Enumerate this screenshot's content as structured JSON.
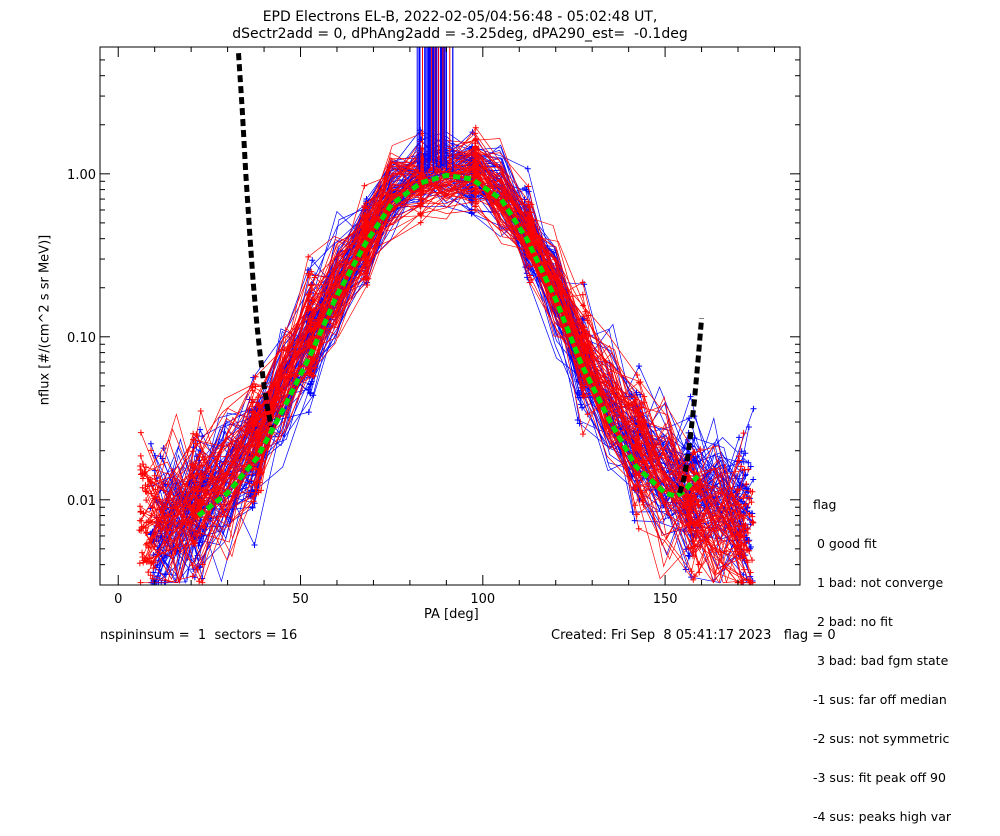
{
  "chart_data": {
    "type": "line",
    "title": "EPD Electrons EL-B, 2022-02-05/04:56:48 - 05:02:48 UT,",
    "subtitle": "dSectr2add = 0, dPhAng2add = -3.25deg, dPA290_est=  -0.1deg",
    "xlabel": "PA [deg]",
    "ylabel": "nflux [#/(cm^2 s sr MeV)]",
    "xlim": [
      -5,
      187
    ],
    "ylim": [
      0.003,
      6.0
    ],
    "yscale": "log",
    "xticks": [
      "0",
      "50",
      "100",
      "150"
    ],
    "xtick_values": [
      0,
      50,
      100,
      150
    ],
    "yticks": [
      "0.01",
      "0.10",
      "1.00"
    ],
    "ytick_values": [
      0.01,
      0.1,
      1.0
    ],
    "grid": false,
    "series": [
      {
        "color": "#0000ff",
        "style": "median-curve",
        "pa": [
          11,
          17,
          22,
          29,
          37,
          45,
          53,
          60,
          68,
          75,
          83,
          90,
          97,
          105,
          112,
          120,
          127,
          135,
          142,
          150,
          157,
          165,
          172
        ],
        "values": [
          0.006,
          0.008,
          0.009,
          0.013,
          0.022,
          0.045,
          0.1,
          0.22,
          0.45,
          0.8,
          1.02,
          1.05,
          1.0,
          0.8,
          0.45,
          0.2,
          0.07,
          0.035,
          0.02,
          0.014,
          0.011,
          0.009,
          0.008
        ]
      },
      {
        "color": "#ff0000",
        "style": "median-curve",
        "pa": [
          8,
          15,
          22,
          30,
          38,
          45,
          53,
          60,
          68,
          75,
          83,
          90,
          98,
          105,
          113,
          120,
          128,
          135,
          143,
          150,
          158,
          165,
          172
        ],
        "values": [
          0.007,
          0.008,
          0.01,
          0.015,
          0.025,
          0.05,
          0.11,
          0.2,
          0.38,
          0.75,
          0.9,
          0.95,
          1.05,
          0.75,
          0.42,
          0.2,
          0.08,
          0.04,
          0.022,
          0.013,
          0.009,
          0.007,
          0.006
        ]
      },
      {
        "color": "#00dd00",
        "style": "dashed-fit",
        "pa": [
          22,
          30,
          38,
          45,
          53,
          60,
          68,
          75,
          83,
          90,
          97,
          105,
          112,
          120,
          127,
          135,
          142,
          150,
          153,
          155,
          157,
          159
        ],
        "values": [
          0.008,
          0.011,
          0.018,
          0.035,
          0.08,
          0.18,
          0.38,
          0.65,
          0.88,
          0.98,
          0.93,
          0.7,
          0.4,
          0.17,
          0.068,
          0.03,
          0.016,
          0.011,
          0.0105,
          0.0112,
          0.0125,
          0.014
        ]
      },
      {
        "color": "#000000",
        "style": "dashed-fit",
        "pa": [
          33,
          34,
          35,
          36,
          37,
          38,
          39,
          40,
          41,
          42
        ],
        "values": [
          5.5,
          2.5,
          1.0,
          0.45,
          0.22,
          0.12,
          0.075,
          0.05,
          0.036,
          0.028
        ]
      },
      {
        "color": "#000000",
        "style": "dashed-fit",
        "pa": [
          154,
          155,
          156,
          157,
          158,
          159,
          160
        ],
        "values": [
          0.011,
          0.013,
          0.017,
          0.025,
          0.04,
          0.07,
          0.13
        ]
      }
    ]
  },
  "footer": {
    "left": "nspininsum =  1  sectors = 16",
    "right": "Created: Fri Sep  8 05:41:17 2023   flag = 0"
  },
  "legend": {
    "title": "flag",
    "items": [
      " 0 good fit",
      " 1 bad: not converge",
      " 2 bad: no fit",
      " 3 bad: bad fgm state",
      "-1 sus: far off median",
      "-2 sus: not symmetric",
      "-3 sus: fit peak off 90",
      "-4 sus: peaks high var"
    ]
  }
}
